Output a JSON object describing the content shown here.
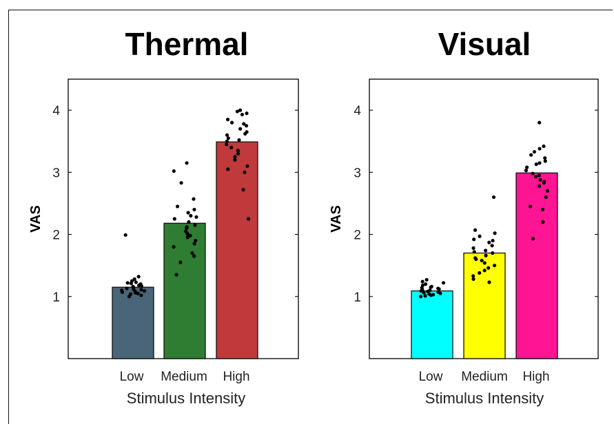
{
  "chart_data": [
    {
      "type": "bar",
      "title": "Thermal",
      "xlabel": "Stimulus Intensity",
      "ylabel": "VAS",
      "categories": [
        "Low",
        "Medium",
        "High"
      ],
      "values": [
        1.15,
        2.18,
        3.49
      ],
      "colors": [
        "#4a6478",
        "#2e7d32",
        "#c0393b"
      ],
      "ylim": [
        0,
        4.5
      ],
      "yticks": [
        "1",
        "2",
        "3",
        "4"
      ],
      "grid": false,
      "points": [
        [
          1.99,
          1.32,
          1.28,
          1.25,
          1.22,
          1.2,
          1.18,
          1.16,
          1.14,
          1.12,
          1.1,
          1.08,
          1.06,
          1.04,
          1.02,
          1.0,
          1.21,
          1.13,
          1.09,
          1.05,
          1.17,
          1.11,
          1.07,
          1.23
        ],
        [
          3.15,
          3.02,
          2.83,
          2.57,
          2.45,
          2.4,
          2.35,
          2.3,
          2.25,
          2.2,
          2.15,
          2.1,
          2.05,
          2.0,
          1.95,
          1.9,
          1.85,
          1.8,
          1.7,
          1.65,
          1.55,
          1.35,
          2.28,
          2.12,
          1.98,
          2.02
        ],
        [
          4.0,
          3.98,
          3.95,
          3.93,
          3.85,
          3.8,
          3.75,
          3.7,
          3.65,
          3.6,
          3.55,
          3.5,
          3.45,
          3.4,
          3.35,
          3.3,
          3.25,
          3.2,
          3.1,
          3.05,
          3.0,
          2.72,
          2.25,
          3.78,
          3.62,
          3.52
        ]
      ]
    },
    {
      "type": "bar",
      "title": "Visual",
      "xlabel": "Stimulus Intensity",
      "ylabel": "VAS",
      "categories": [
        "Low",
        "Medium",
        "High"
      ],
      "values": [
        1.09,
        1.7,
        2.99
      ],
      "colors": [
        "#00ffff",
        "#ffff00",
        "#ff1493"
      ],
      "ylim": [
        0,
        4.5
      ],
      "yticks": [
        "1",
        "2",
        "3",
        "4"
      ],
      "grid": false,
      "points": [
        [
          1.27,
          1.22,
          1.18,
          1.15,
          1.12,
          1.1,
          1.08,
          1.06,
          1.04,
          1.02,
          1.0,
          1.01,
          1.03,
          1.05,
          1.07,
          1.09,
          1.11,
          1.13,
          1.16,
          1.2,
          1.24,
          1.14
        ],
        [
          2.6,
          2.07,
          2.02,
          1.97,
          1.92,
          1.87,
          1.82,
          1.78,
          1.74,
          1.7,
          1.66,
          1.62,
          1.58,
          1.54,
          1.5,
          1.46,
          1.42,
          1.38,
          1.33,
          1.28,
          1.23,
          1.6,
          1.72,
          1.9
        ],
        [
          3.8,
          3.42,
          3.38,
          3.33,
          3.28,
          3.23,
          3.18,
          3.13,
          3.08,
          3.03,
          2.98,
          2.93,
          2.88,
          2.83,
          2.78,
          2.7,
          2.6,
          2.45,
          2.4,
          2.2,
          1.93,
          3.15,
          2.95,
          2.85
        ]
      ]
    }
  ]
}
